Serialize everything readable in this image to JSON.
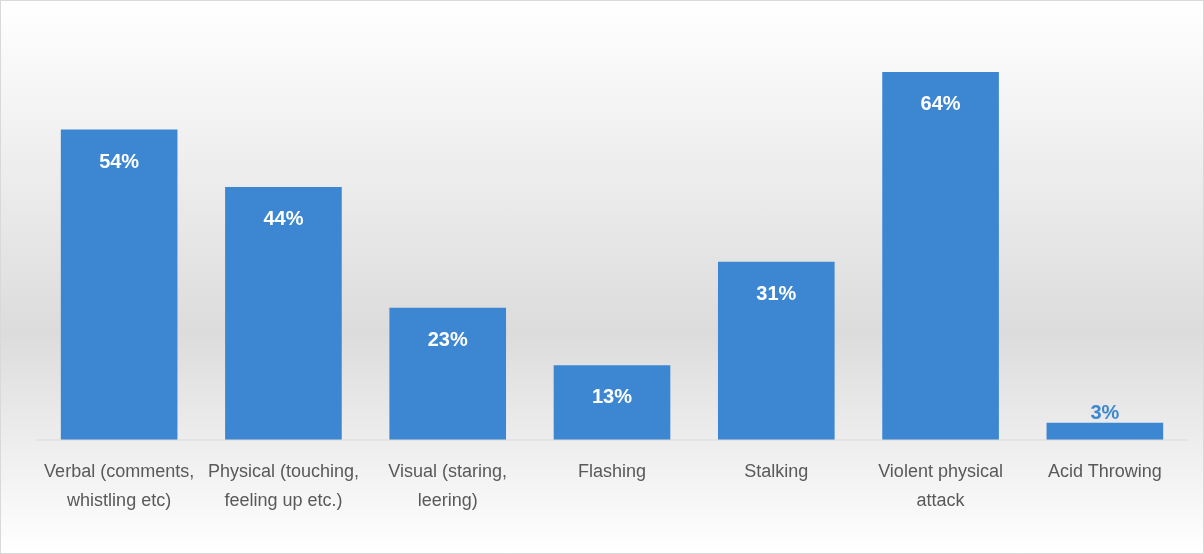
{
  "chart_data": {
    "type": "bar",
    "categories": [
      "Verbal (comments, whistling etc)",
      "Physical (touching, feeling up etc.)",
      "Visual (staring, leering)",
      "Flashing",
      "Stalking",
      "Violent physical attack",
      "Acid Throwing"
    ],
    "values": [
      54,
      44,
      23,
      13,
      31,
      64,
      3
    ],
    "value_labels": [
      "54%",
      "44%",
      "23%",
      "13%",
      "31%",
      "64%",
      "3%"
    ],
    "color": "#3d87d2"
  }
}
